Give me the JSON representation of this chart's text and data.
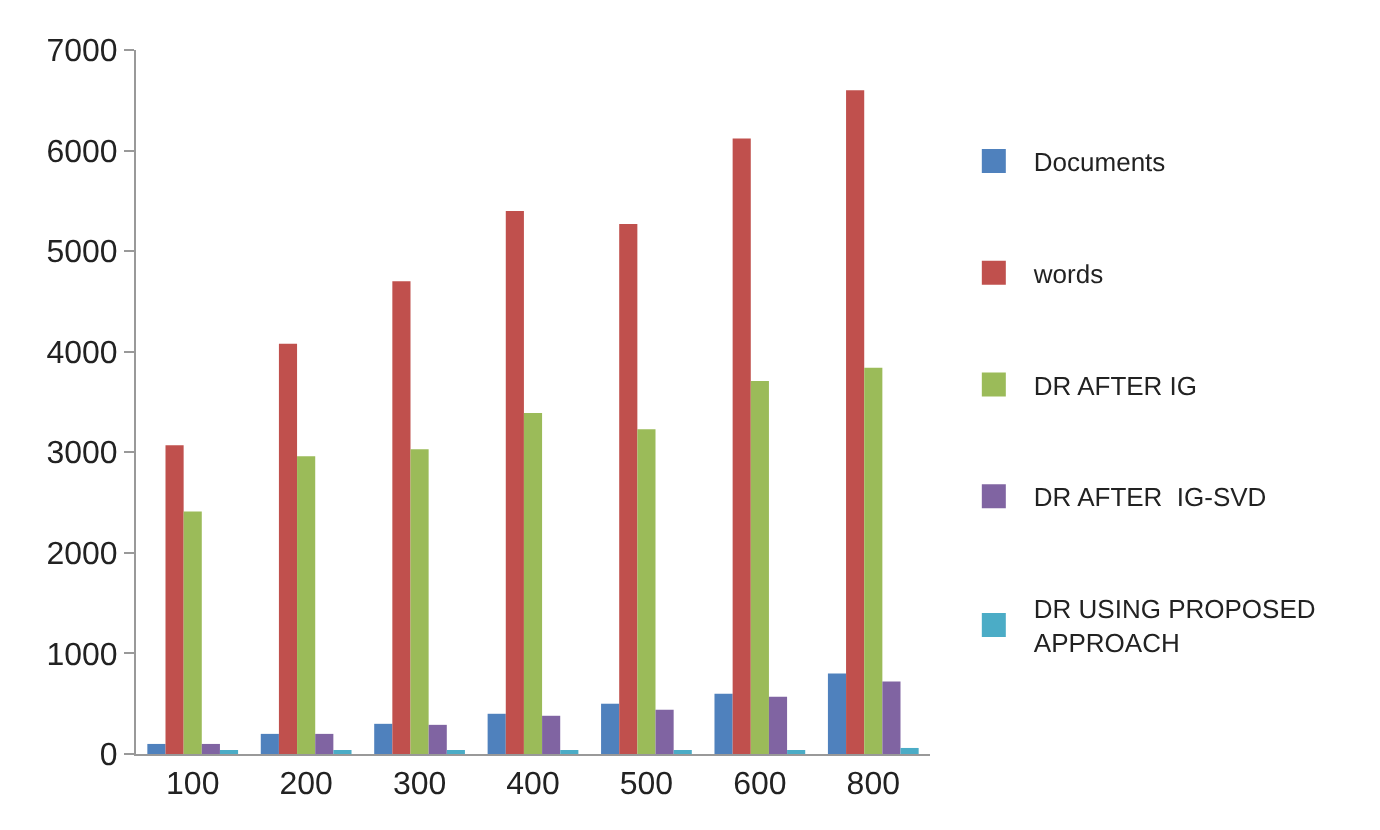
{
  "chart_data": {
    "type": "bar",
    "categories": [
      "100",
      "200",
      "300",
      "400",
      "500",
      "600",
      "800"
    ],
    "series": [
      {
        "name": "Documents",
        "color": "#4f81bd",
        "values": [
          100,
          200,
          300,
          400,
          500,
          600,
          800
        ]
      },
      {
        "name": "words",
        "color": "#c0504d",
        "values": [
          3070,
          4080,
          4700,
          5400,
          5270,
          6120,
          6600
        ]
      },
      {
        "name": "DR AFTER IG",
        "color": "#9bbb59",
        "values": [
          2410,
          2960,
          3030,
          3390,
          3230,
          3710,
          3840
        ]
      },
      {
        "name": "DR AFTER  IG-SVD",
        "color": "#8064a2",
        "values": [
          100,
          200,
          290,
          380,
          440,
          570,
          720
        ]
      },
      {
        "name": "DR USING PROPOSED APPROACH",
        "color": "#4bacc6",
        "values": [
          20,
          20,
          20,
          40,
          40,
          40,
          60
        ]
      }
    ],
    "ylim": [
      0,
      7000
    ],
    "yticks": [
      0,
      1000,
      2000,
      3000,
      4000,
      5000,
      6000,
      7000
    ],
    "legend": "right"
  }
}
